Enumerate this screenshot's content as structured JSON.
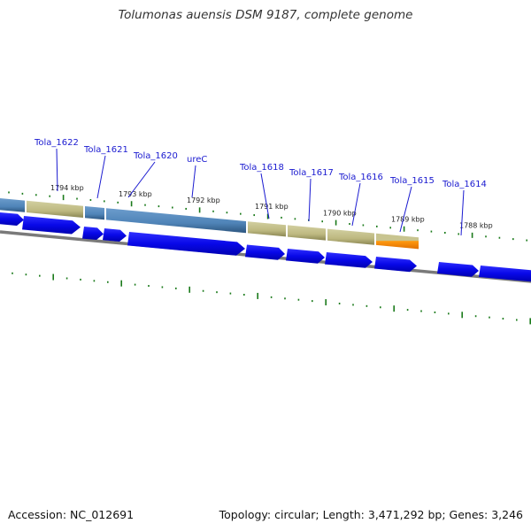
{
  "title": "Tolumonas auensis DSM 9187, complete genome",
  "footer": {
    "accession": "Accession: NC_012691",
    "summary": "Topology: circular; Length: 3,471,292 bp; Genes: 3,246"
  },
  "gene_labels": [
    "Tola_1622",
    "Tola_1621",
    "Tola_1620",
    "ureC",
    "Tola_1618",
    "Tola_1617",
    "Tola_1616",
    "Tola_1615",
    "Tola_1614"
  ],
  "tick_labels": [
    "1794 kbp",
    "1793 kbp",
    "1792 kbp",
    "1791 kbp",
    "1790 kbp",
    "1789 kbp",
    "1788 kbp"
  ],
  "colors": {
    "cds_arrow": "#0a0ae6",
    "segment_steel": "#5a8fc0",
    "segment_khaki": "#c4c08a",
    "segment_orange": "#ff8c00",
    "backbone": "#7a7a7a",
    "tick": "#1a7a1a",
    "label": "#1a1ad0"
  }
}
